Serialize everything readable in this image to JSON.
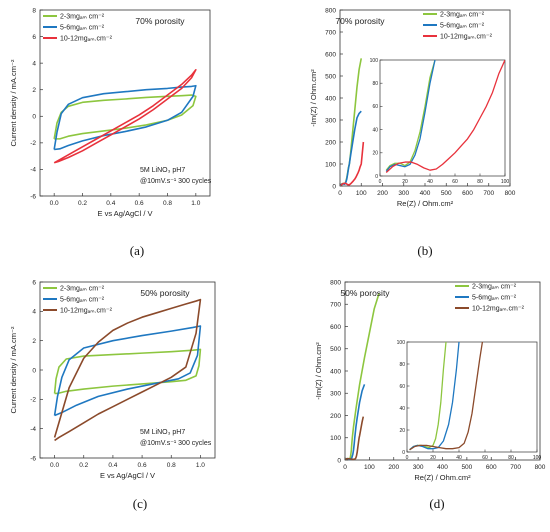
{
  "chart_data": [
    {
      "type": "line",
      "panel_label": "(a)",
      "annotation": "70% porosity",
      "conditions": [
        "5M LiNO₃  pH7",
        "@10mV.s⁻¹   300 cycles"
      ],
      "xlabel": "E vs Ag/AgCl / V",
      "ylabel": "Current density / mA.cm⁻²",
      "xlim": [
        -0.1,
        1.1
      ],
      "ylim": [
        -6,
        8
      ],
      "xticks": [
        0.0,
        0.2,
        0.4,
        0.6,
        0.8,
        1.0
      ],
      "xtick_labels": [
        "0.0",
        "0.2",
        "0.4",
        "0.6",
        "0.8",
        "1.0"
      ],
      "yticks": [
        -6,
        -4,
        -2,
        0,
        2,
        4,
        6,
        8
      ],
      "yticks_labels": [
        "-6",
        "-4",
        "-2",
        "0",
        "2",
        "4",
        "6",
        "8"
      ],
      "legend_position": "top-left",
      "series": [
        {
          "name": "2-3mgₐₘ cm⁻²",
          "color": "#8dc63f",
          "x": [
            0.0,
            0.02,
            0.05,
            0.1,
            0.2,
            0.35,
            0.5,
            0.65,
            0.8,
            0.9,
            0.97,
            1.0,
            0.98,
            0.9,
            0.8,
            0.65,
            0.5,
            0.35,
            0.2,
            0.1,
            0.04,
            0.0
          ],
          "y": [
            -1.7,
            -0.5,
            0.3,
            0.75,
            1.05,
            1.2,
            1.3,
            1.42,
            1.5,
            1.55,
            1.6,
            1.5,
            0.8,
            0.1,
            -0.3,
            -0.65,
            -0.9,
            -1.1,
            -1.3,
            -1.5,
            -1.7,
            -1.7
          ]
        },
        {
          "name": "5-6mgₐₘ cm⁻²",
          "color": "#1f78c1",
          "x": [
            0.0,
            0.02,
            0.05,
            0.1,
            0.2,
            0.35,
            0.5,
            0.65,
            0.8,
            0.9,
            0.97,
            1.0,
            0.98,
            0.9,
            0.8,
            0.65,
            0.5,
            0.35,
            0.2,
            0.1,
            0.04,
            0.0
          ],
          "y": [
            -2.5,
            -1.2,
            0.2,
            0.9,
            1.4,
            1.7,
            1.85,
            2.0,
            2.1,
            2.2,
            2.25,
            2.3,
            1.5,
            0.3,
            -0.3,
            -0.8,
            -1.15,
            -1.45,
            -1.85,
            -2.2,
            -2.45,
            -2.5
          ]
        },
        {
          "name": "10-12mgₐₘ.cm⁻²",
          "color": "#e8323c",
          "x": [
            0.0,
            0.1,
            0.2,
            0.3,
            0.4,
            0.5,
            0.6,
            0.7,
            0.8,
            0.9,
            0.97,
            1.0,
            0.97,
            0.9,
            0.8,
            0.7,
            0.6,
            0.5,
            0.4,
            0.3,
            0.2,
            0.1,
            0.03,
            0.0
          ],
          "y": [
            -3.5,
            -2.9,
            -2.3,
            -1.7,
            -1.1,
            -0.5,
            0.1,
            0.8,
            1.6,
            2.4,
            3.1,
            3.5,
            2.9,
            2.1,
            1.3,
            0.5,
            -0.2,
            -0.8,
            -1.4,
            -2.0,
            -2.6,
            -3.1,
            -3.4,
            -3.5
          ]
        }
      ]
    },
    {
      "type": "line",
      "panel_label": "(b)",
      "annotation": "70% porosity",
      "xlabel": "Re(Z) / Ohm.cm²",
      "ylabel": "-Im(Z) / Ohm.cm²",
      "xlim": [
        0,
        800
      ],
      "ylim": [
        0,
        800
      ],
      "xticks": [
        0,
        100,
        200,
        300,
        400,
        500,
        600,
        700,
        800
      ],
      "xtick_labels": [
        "0",
        "100",
        "200",
        "300",
        "400",
        "500",
        "600",
        "700",
        "800"
      ],
      "yticks": [
        0,
        100,
        200,
        300,
        400,
        500,
        600,
        700,
        800
      ],
      "ytick_labels": [
        "0",
        "100",
        "200",
        "300",
        "400",
        "500",
        "600",
        "700",
        "800"
      ],
      "legend_position": "top-right",
      "inset": {
        "xlim": [
          0,
          100
        ],
        "ylim": [
          0,
          100
        ],
        "xticks": [
          0,
          20,
          40,
          60,
          80,
          100
        ],
        "xtick_labels": [
          "0",
          "20",
          "40",
          "60",
          "80",
          "100"
        ],
        "yticks": [
          0,
          20,
          40,
          60,
          80,
          100
        ],
        "ytick_labels": [
          "0",
          "20",
          "40",
          "60",
          "80",
          "100"
        ]
      },
      "series": [
        {
          "name": "2-3mgₐₘ cm⁻²",
          "color": "#8dc63f",
          "x": [
            5,
            8,
            12,
            16,
            20,
            24,
            28,
            32,
            36,
            40,
            44,
            50,
            60,
            70,
            80,
            90,
            100
          ],
          "y": [
            5,
            9,
            11,
            11,
            9,
            12,
            22,
            38,
            60,
            85,
            100,
            150,
            250,
            350,
            450,
            530,
            580
          ]
        },
        {
          "name": "5-6mgₐₘ cm⁻²",
          "color": "#1f78c1",
          "x": [
            5,
            8,
            12,
            16,
            20,
            24,
            28,
            32,
            36,
            40,
            44,
            50,
            60,
            70,
            80,
            90,
            100
          ],
          "y": [
            4,
            8,
            10,
            9,
            8,
            10,
            18,
            32,
            55,
            80,
            100,
            140,
            200,
            260,
            310,
            330,
            340
          ]
        },
        {
          "name": "10-12mgₐₘ.cm⁻²",
          "color": "#e8323c",
          "x": [
            5,
            10,
            15,
            20,
            25,
            30,
            35,
            40,
            45,
            50,
            55,
            60,
            65,
            70,
            75,
            80,
            85,
            90,
            95,
            100,
            110
          ],
          "y": [
            3,
            8,
            11,
            12,
            12,
            10,
            7,
            5,
            6,
            10,
            15,
            20,
            26,
            32,
            40,
            50,
            60,
            72,
            88,
            100,
            200
          ]
        }
      ]
    },
    {
      "type": "line",
      "panel_label": "(c)",
      "annotation": "50% porosity",
      "conditions": [
        "5M LiNO₃  pH7",
        "@10mV.s⁻¹   300 cycles"
      ],
      "xlabel": "E vs Ag/AgCl / V",
      "ylabel": "Current density / mA.cm⁻²",
      "xlim": [
        -0.1,
        1.1
      ],
      "ylim": [
        -6,
        6
      ],
      "xticks": [
        0.0,
        0.2,
        0.4,
        0.6,
        0.8,
        1.0
      ],
      "xtick_labels": [
        "0.0",
        "0.2",
        "0.4",
        "0.6",
        "0.8",
        "1.0"
      ],
      "yticks": [
        -6,
        -4,
        -2,
        0,
        2,
        4,
        6
      ],
      "ytick_labels": [
        "-6",
        "-4",
        "-2",
        "0",
        "2",
        "4",
        "6"
      ],
      "legend_position": "top-left",
      "series": [
        {
          "name": "2-3mgₐₘ cm⁻²",
          "color": "#8dc63f",
          "x": [
            0.0,
            0.01,
            0.03,
            0.08,
            0.2,
            0.4,
            0.6,
            0.8,
            0.95,
            1.0,
            0.99,
            0.97,
            0.9,
            0.8,
            0.6,
            0.4,
            0.2,
            0.08,
            0.02,
            0.0
          ],
          "y": [
            -1.6,
            -0.6,
            0.2,
            0.75,
            0.95,
            1.05,
            1.15,
            1.25,
            1.35,
            1.4,
            0.3,
            -0.4,
            -0.7,
            -0.8,
            -0.95,
            -1.1,
            -1.3,
            -1.45,
            -1.6,
            -1.6
          ]
        },
        {
          "name": "5-6mgₐₘ cm⁻²",
          "color": "#1f78c1",
          "x": [
            0.0,
            0.02,
            0.05,
            0.1,
            0.2,
            0.4,
            0.6,
            0.8,
            0.95,
            1.0,
            0.98,
            0.93,
            0.85,
            0.7,
            0.5,
            0.3,
            0.15,
            0.05,
            0.0
          ],
          "y": [
            -3.1,
            -1.8,
            -0.5,
            0.7,
            1.5,
            2.0,
            2.35,
            2.65,
            2.9,
            3.0,
            1.0,
            -0.2,
            -0.6,
            -0.9,
            -1.3,
            -1.8,
            -2.4,
            -2.9,
            -3.1
          ]
        },
        {
          "name": "10-12mgₐₘ.cm⁻²",
          "color": "#8b4a2b",
          "x": [
            0.0,
            0.1,
            0.2,
            0.3,
            0.4,
            0.5,
            0.6,
            0.7,
            0.8,
            0.9,
            0.97,
            1.0,
            0.97,
            0.9,
            0.8,
            0.7,
            0.6,
            0.5,
            0.4,
            0.3,
            0.2,
            0.1,
            0.03,
            0.0
          ],
          "y": [
            -4.6,
            -1.2,
            0.8,
            1.9,
            2.7,
            3.2,
            3.6,
            3.9,
            4.2,
            4.5,
            4.7,
            4.8,
            2.5,
            0.2,
            -0.5,
            -1.0,
            -1.5,
            -2.0,
            -2.5,
            -3.0,
            -3.6,
            -4.2,
            -4.6,
            -4.8
          ]
        }
      ]
    },
    {
      "type": "line",
      "panel_label": "(d)",
      "annotation": "50% porosity",
      "xlabel": "Re(Z) / Ohm.cm²",
      "ylabel": "-Im(Z) / Ohm.cm²",
      "xlim": [
        0,
        800
      ],
      "ylim": [
        0,
        800
      ],
      "xticks": [
        0,
        100,
        200,
        300,
        400,
        500,
        600,
        700,
        800
      ],
      "xtick_labels": [
        "0",
        "100",
        "200",
        "300",
        "400",
        "500",
        "600",
        "700",
        "800"
      ],
      "yticks": [
        0,
        100,
        200,
        300,
        400,
        500,
        600,
        700,
        800
      ],
      "ytick_labels": [
        "0",
        "100",
        "200",
        "300",
        "400",
        "500",
        "600",
        "700",
        "800"
      ],
      "legend_position": "top-right",
      "inset": {
        "xlim": [
          0,
          100
        ],
        "ylim": [
          0,
          100
        ],
        "xticks": [
          0,
          20,
          40,
          60,
          80,
          100
        ],
        "xtick_labels": [
          "0",
          "20",
          "40",
          "60",
          "80",
          "100"
        ],
        "yticks": [
          0,
          20,
          40,
          60,
          80,
          100
        ],
        "ytick_labels": [
          "0",
          "20",
          "40",
          "60",
          "80",
          "100"
        ]
      },
      "series": [
        {
          "name": "2-3mgₐₘ cm⁻²",
          "color": "#8dc63f",
          "x": [
            2,
            5,
            8,
            11,
            14,
            17,
            20,
            22,
            24,
            26,
            28,
            30,
            35,
            45,
            60,
            80,
            100,
            120,
            140
          ],
          "y": [
            2,
            5,
            6,
            6,
            5,
            4,
            6,
            12,
            25,
            45,
            75,
            100,
            150,
            230,
            340,
            460,
            570,
            680,
            750
          ]
        },
        {
          "name": "5-6mgₐₘ cm⁻²",
          "color": "#1f78c1",
          "x": [
            2,
            5,
            8,
            12,
            16,
            20,
            24,
            28,
            32,
            35,
            38,
            40,
            42,
            45,
            50,
            60,
            70,
            80
          ],
          "y": [
            2,
            5,
            6,
            5,
            3,
            3,
            4,
            10,
            25,
            45,
            75,
            100,
            120,
            150,
            190,
            260,
            310,
            340
          ]
        },
        {
          "name": "10-12mgₐₘ.cm⁻²",
          "color": "#8b4a2b",
          "x": [
            2,
            6,
            10,
            15,
            20,
            25,
            30,
            35,
            40,
            44,
            47,
            50,
            53,
            56,
            58,
            60,
            65,
            70,
            75
          ],
          "y": [
            2,
            5,
            6,
            6,
            5,
            4,
            3,
            3,
            4,
            8,
            18,
            35,
            60,
            85,
            100,
            110,
            140,
            170,
            195
          ]
        }
      ]
    }
  ]
}
